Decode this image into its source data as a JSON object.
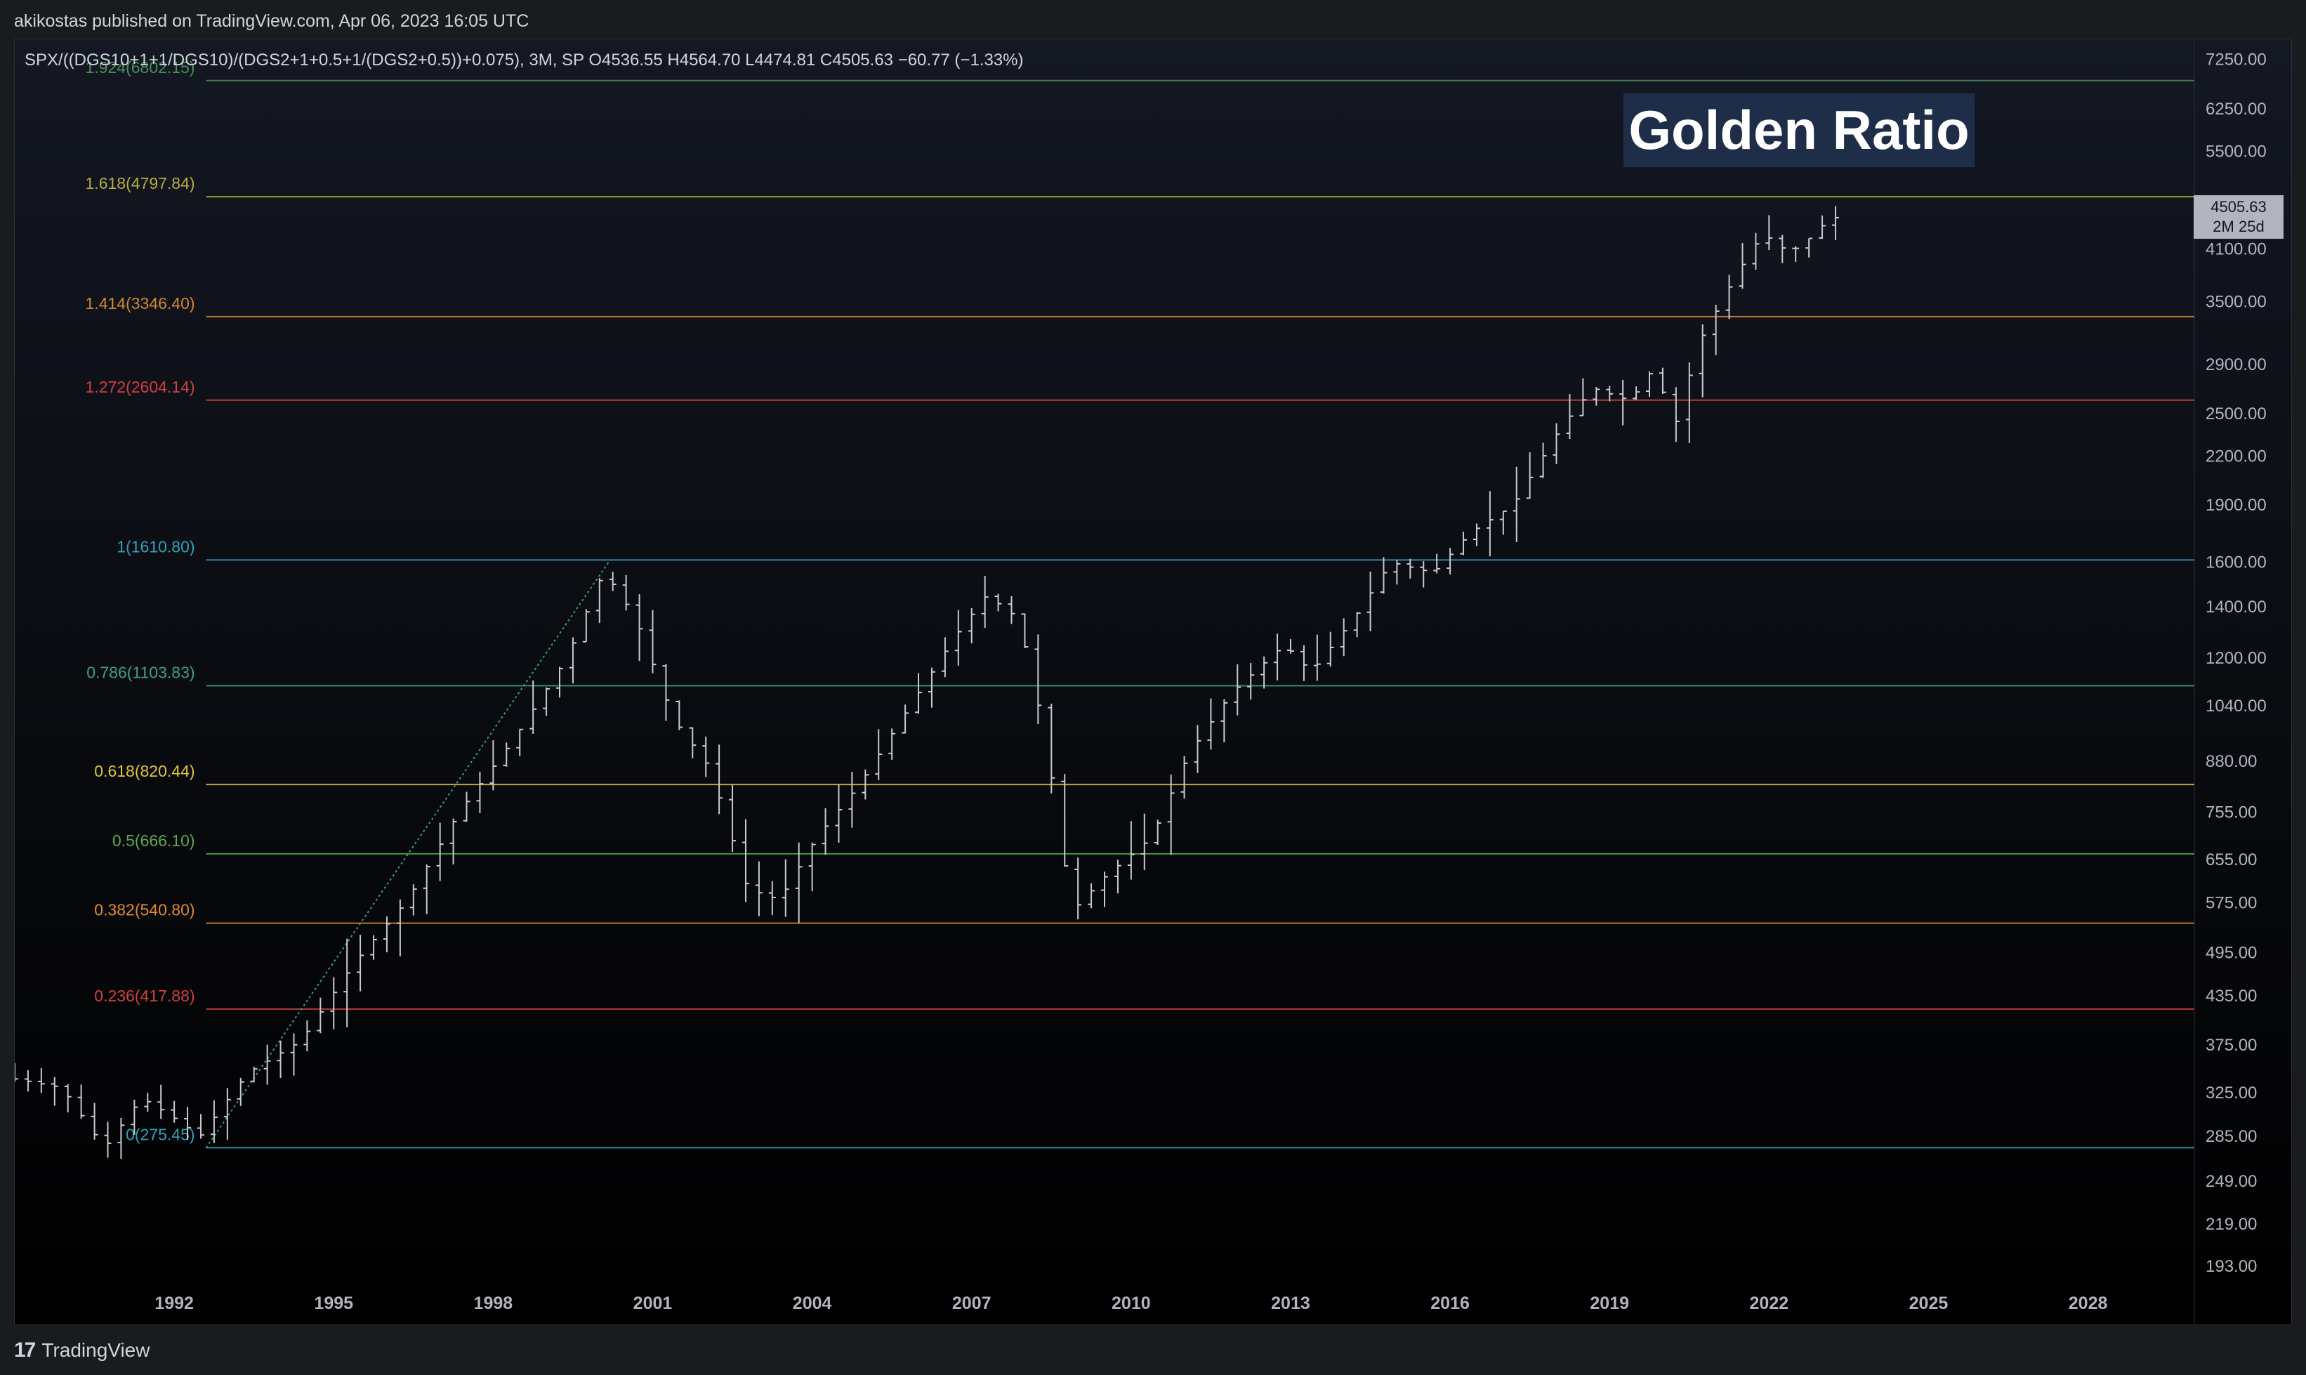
{
  "header": {
    "published": "akikostas published on TradingView.com, Apr 06, 2023 16:05 UTC"
  },
  "symbol": {
    "name": "SPX/((DGS10+1+1/DGS10)/(DGS2+1+0.5+1/(DGS2+0.5))+0.075), 3M, SP",
    "ohlc": "O4536.55  H4564.70  L4474.81  C4505.63",
    "change": "−60.77 (−1.33%)"
  },
  "annotation": {
    "title": "Golden Ratio",
    "title_bg": "#1e2d48"
  },
  "price_tag": {
    "value": "4505.63",
    "countdown": "2M 25d"
  },
  "footer": {
    "logo_mark": "17",
    "brand": "TradingView"
  },
  "chart_data": {
    "type": "ohlc",
    "scale": "log",
    "grid": false,
    "y_range": [
      180,
      7700
    ],
    "x_range": [
      1989.0,
      2030.0
    ],
    "x_ticks": [
      "1992",
      "1995",
      "1998",
      "2001",
      "2004",
      "2007",
      "2010",
      "2013",
      "2016",
      "2019",
      "2022",
      "2025",
      "2028"
    ],
    "y_ticks": [
      "7250.00",
      "6250.00",
      "5500.00",
      "4700.00",
      "4100.00",
      "3500.00",
      "2900.00",
      "2500.00",
      "2200.00",
      "1900.00",
      "1600.00",
      "1400.00",
      "1200.00",
      "1040.00",
      "880.00",
      "755.00",
      "655.00",
      "575.00",
      "495.00",
      "435.00",
      "375.00",
      "325.00",
      "285.00",
      "249.00",
      "219.00",
      "193.00"
    ],
    "y_tick_values": [
      7250,
      6250,
      5500,
      4700,
      4100,
      3500,
      2900,
      2500,
      2200,
      1900,
      1600,
      1400,
      1200,
      1040,
      880,
      755,
      655,
      575,
      495,
      435,
      375,
      325,
      285,
      249,
      219,
      193
    ],
    "fib_levels": [
      {
        "label": "1.924(6802.15)",
        "value": 6802.15,
        "color": "#4a8f55"
      },
      {
        "label": "1.618(4797.84)",
        "value": 4797.84,
        "color": "#b5ad3c"
      },
      {
        "label": "1.414(3346.40)",
        "value": 3346.4,
        "color": "#d18a2a"
      },
      {
        "label": "1.272(2604.14)",
        "value": 2604.14,
        "color": "#d33f3f"
      },
      {
        "label": "1(1610.80)",
        "value": 1610.8,
        "color": "#2ea3b8"
      },
      {
        "label": "0.786(1103.83)",
        "value": 1103.83,
        "color": "#3f9f7f"
      },
      {
        "label": "0.618(820.44)",
        "value": 820.44,
        "color": "#e0c43a"
      },
      {
        "label": "0.5(666.10)",
        "value": 666.1,
        "color": "#5aaa4e"
      },
      {
        "label": "0.382(540.80)",
        "value": 540.8,
        "color": "#e08a2a"
      },
      {
        "label": "0.236(417.88)",
        "value": 417.88,
        "color": "#d33f3f"
      },
      {
        "label": "0(275.45)",
        "value": 275.45,
        "color": "#2ea3b8"
      }
    ],
    "fib_anchor": {
      "x1": 1992.6,
      "y1": 275.45,
      "x2": 2000.2,
      "y2": 1610.8
    },
    "current_price": 4505.63,
    "anchors": [
      [
        1989.0,
        340
      ],
      [
        1990.0,
        330
      ],
      [
        1990.8,
        275
      ],
      [
        1991.5,
        320
      ],
      [
        1992.0,
        305
      ],
      [
        1992.6,
        285
      ],
      [
        1993.5,
        345
      ],
      [
        1994.5,
        380
      ],
      [
        1995.5,
        480
      ],
      [
        1996.5,
        580
      ],
      [
        1997.5,
        760
      ],
      [
        1998.5,
        940
      ],
      [
        1999.5,
        1200
      ],
      [
        2000.2,
        1560
      ],
      [
        2000.8,
        1350
      ],
      [
        2001.5,
        1000
      ],
      [
        2002.2,
        860
      ],
      [
        2002.9,
        600
      ],
      [
        2003.5,
        580
      ],
      [
        2004.2,
        700
      ],
      [
        2005.0,
        820
      ],
      [
        2006.0,
        1050
      ],
      [
        2006.8,
        1280
      ],
      [
        2007.4,
        1450
      ],
      [
        2008.0,
        1350
      ],
      [
        2008.5,
        950
      ],
      [
        2009.0,
        560
      ],
      [
        2009.6,
        620
      ],
      [
        2010.5,
        700
      ],
      [
        2011.2,
        900
      ],
      [
        2012.0,
        1080
      ],
      [
        2013.0,
        1250
      ],
      [
        2013.5,
        1150
      ],
      [
        2014.3,
        1350
      ],
      [
        2015.0,
        1600
      ],
      [
        2015.8,
        1550
      ],
      [
        2016.5,
        1750
      ],
      [
        2017.3,
        1900
      ],
      [
        2018.2,
        2400
      ],
      [
        2018.8,
        2700
      ],
      [
        2019.5,
        2600
      ],
      [
        2020.0,
        2900
      ],
      [
        2020.3,
        2350
      ],
      [
        2020.8,
        3100
      ],
      [
        2021.5,
        3800
      ],
      [
        2022.0,
        4300
      ],
      [
        2022.5,
        4050
      ],
      [
        2023.0,
        4300
      ],
      [
        2023.25,
        4505.63
      ]
    ]
  }
}
